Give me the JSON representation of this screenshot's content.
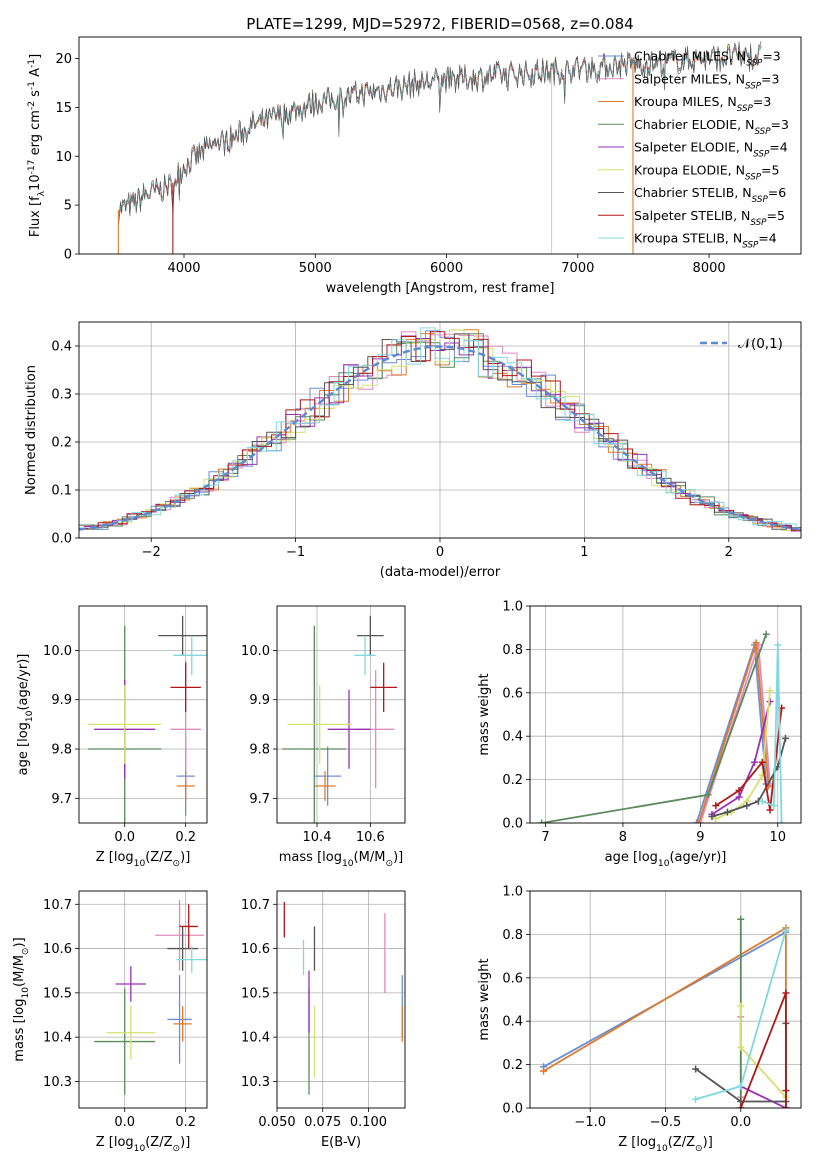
{
  "figure_title": "PLATE=1299, MJD=52972, FIBERID=0568, z=0.084",
  "legend_labels": [
    "Chabrier MILES, N$_{SSP}$=3",
    "Salpeter MILES, N$_{SSP}$=3",
    "Kroupa MILES, N$_{SSP}$=3",
    "Chabrier ELODIE, N$_{SSP}$=3",
    "Salpeter ELODIE, N$_{SSP}$=4",
    "Kroupa ELODIE, N$_{SSP}$=5",
    "Chabrier STELIB, N$_{SSP}$=6",
    "Salpeter STELIB, N$_{SSP}$=5",
    "Kroupa STELIB, N$_{SSP}$=4"
  ],
  "colors": [
    "#6a8fd6",
    "#e08bc0",
    "#e07a2a",
    "#5c8a5c",
    "#9a30b8",
    "#d6e070",
    "#555555",
    "#b01818",
    "#80d8e0"
  ],
  "chart_data": [
    {
      "type": "line",
      "title": "PLATE=1299, MJD=52972, FIBERID=0568, z=0.084",
      "xlabel": "wavelength [Angstrom, rest frame]",
      "ylabel": "Flux [f$_\\lambda$10$^{-17}$ erg cm$^{-2}$ s$^{-1}$ A$^{-1}$]",
      "xlim": [
        3200,
        8700
      ],
      "ylim": [
        0,
        22.2
      ],
      "xticks": [
        4000,
        5000,
        6000,
        7000,
        8000
      ],
      "yticks": [
        0,
        5,
        10,
        15,
        20
      ],
      "legend": "top-right",
      "spectrum_envelope": {
        "x": [
          3500,
          3600,
          3700,
          3800,
          3900,
          4000,
          4100,
          4200,
          4300,
          4400,
          4500,
          4600,
          4700,
          4800,
          4900,
          5000,
          5200,
          5400,
          5600,
          5800,
          6000,
          6200,
          6400,
          6600,
          6800,
          7000,
          7200,
          7400,
          7600,
          7800,
          8000,
          8200,
          8400
        ],
        "y": [
          4.5,
          5.0,
          6.0,
          6.5,
          7.0,
          9.0,
          10.0,
          11.0,
          11.5,
          12.0,
          13.0,
          13.5,
          14.0,
          14.5,
          15.0,
          15.5,
          16.0,
          16.5,
          17.0,
          17.5,
          17.8,
          18.0,
          18.3,
          18.5,
          18.7,
          19.0,
          19.2,
          19.4,
          19.6,
          19.8,
          20.0,
          20.2,
          20.3
        ]
      },
      "noise_amplitude": 1.2,
      "grid": false
    },
    {
      "type": "line",
      "xlabel": "(data-model)/error",
      "ylabel": "Normed distribution",
      "xlim": [
        -2.5,
        2.5
      ],
      "ylim": [
        0,
        0.45
      ],
      "xticks": [
        -2,
        -1,
        0,
        1,
        2
      ],
      "yticks": [
        0.0,
        0.1,
        0.2,
        0.3,
        0.4
      ],
      "reference_label": "$\\mathcal{N}(0,1)$",
      "legend": "top-right",
      "grid": true,
      "bin_width": 0.1
    },
    {
      "type": "scatter",
      "xlabel": "Z [log$_{10}$(Z/Z$_\\odot$)]",
      "ylabel": "age  [log$_{10}$(age/yr)]",
      "xlim": [
        -0.15,
        0.27
      ],
      "ylim": [
        9.65,
        10.09
      ],
      "xticks": [
        0.0,
        0.2
      ],
      "yticks": [
        9.7,
        9.8,
        9.9,
        10.0
      ],
      "grid": true,
      "points": [
        {
          "x": 0.2,
          "y": 9.745,
          "xerr": 0.03,
          "yerr": 0.08
        },
        {
          "x": 0.2,
          "y": 9.84,
          "xerr": 0.05,
          "yerr": 0.14
        },
        {
          "x": 0.2,
          "y": 9.725,
          "xerr": 0.03,
          "yerr": 0.03
        },
        {
          "x": 0.0,
          "y": 9.8,
          "xerr": 0.12,
          "yerr": 0.25
        },
        {
          "x": 0.0,
          "y": 9.84,
          "xerr": 0.1,
          "yerr": 0.1
        },
        {
          "x": 0.0,
          "y": 9.85,
          "xerr": 0.12,
          "yerr": 0.08
        },
        {
          "x": 0.19,
          "y": 10.03,
          "xerr": 0.08,
          "yerr": 0.04
        },
        {
          "x": 0.2,
          "y": 9.925,
          "xerr": 0.05,
          "yerr": 0.05
        },
        {
          "x": 0.22,
          "y": 9.99,
          "xerr": 0.06,
          "yerr": 0.04
        }
      ]
    },
    {
      "type": "scatter",
      "xlabel": "mass [log$_{10}$(M/M$_\\odot$)]",
      "xlim": [
        10.25,
        10.73
      ],
      "ylim": [
        9.65,
        10.09
      ],
      "xticks": [
        10.4,
        10.6
      ],
      "yticks": [
        9.7,
        9.8,
        9.9,
        10.0
      ],
      "grid": true,
      "points": [
        {
          "x": 10.44,
          "y": 9.745,
          "xerr": 0.05,
          "yerr": 0.06
        },
        {
          "x": 10.62,
          "y": 9.84,
          "xerr": 0.07,
          "yerr": 0.12
        },
        {
          "x": 10.43,
          "y": 9.725,
          "xerr": 0.04,
          "yerr": 0.03
        },
        {
          "x": 10.39,
          "y": 9.8,
          "xerr": 0.12,
          "yerr": 0.25
        },
        {
          "x": 10.52,
          "y": 9.84,
          "xerr": 0.08,
          "yerr": 0.08
        },
        {
          "x": 10.41,
          "y": 9.85,
          "xerr": 0.12,
          "yerr": 0.08
        },
        {
          "x": 10.6,
          "y": 10.03,
          "xerr": 0.05,
          "yerr": 0.04
        },
        {
          "x": 10.65,
          "y": 9.925,
          "xerr": 0.05,
          "yerr": 0.05
        },
        {
          "x": 10.58,
          "y": 9.99,
          "xerr": 0.04,
          "yerr": 0.04
        }
      ]
    },
    {
      "type": "line",
      "xlabel": "age  [log$_{10}$(age/yr)]",
      "ylabel": "mass weight",
      "xlim": [
        6.8,
        10.3
      ],
      "ylim": [
        0.0,
        1.0
      ],
      "xticks": [
        7,
        8,
        9,
        10
      ],
      "yticks": [
        0.0,
        0.2,
        0.4,
        0.6,
        0.8,
        1.0
      ],
      "grid": true,
      "series": [
        {
          "x": [
            8.95,
            9.7,
            9.85
          ],
          "y": [
            0.0,
            0.82,
            0.18
          ]
        },
        {
          "x": [
            9.0,
            9.75,
            9.9
          ],
          "y": [
            0.0,
            0.82,
            0.18
          ]
        },
        {
          "x": [
            8.98,
            9.72,
            9.88
          ],
          "y": [
            0.0,
            0.83,
            0.17
          ]
        },
        {
          "x": [
            6.95,
            9.1,
            9.85
          ],
          "y": [
            0.0,
            0.13,
            0.87
          ]
        },
        {
          "x": [
            9.15,
            9.5,
            9.7,
            9.9
          ],
          "y": [
            0.04,
            0.12,
            0.28,
            0.56
          ]
        },
        {
          "x": [
            9.2,
            9.4,
            9.6,
            9.8,
            9.9
          ],
          "y": [
            0.02,
            0.05,
            0.1,
            0.22,
            0.61
          ]
        },
        {
          "x": [
            9.15,
            9.35,
            9.6,
            9.75,
            10.0,
            10.1
          ],
          "y": [
            0.03,
            0.05,
            0.08,
            0.1,
            0.26,
            0.39
          ]
        },
        {
          "x": [
            9.2,
            9.5,
            9.8,
            9.9,
            10.05
          ],
          "y": [
            0.08,
            0.15,
            0.28,
            0.06,
            0.53
          ]
        },
        {
          "x": [
            9.8,
            9.95,
            10.0,
            10.05
          ],
          "y": [
            0.1,
            0.08,
            0.82,
            0.0
          ]
        }
      ]
    },
    {
      "type": "scatter",
      "xlabel": "Z [log$_{10}$(Z/Z$_\\odot$)]",
      "ylabel": "mass [log$_{10}$(M/M$_\\odot$)]",
      "xlim": [
        -0.15,
        0.27
      ],
      "ylim": [
        10.24,
        10.73
      ],
      "xticks": [
        0.0,
        0.2
      ],
      "yticks": [
        10.3,
        10.4,
        10.5,
        10.6,
        10.7
      ],
      "grid": true,
      "points": [
        {
          "x": 0.18,
          "y": 10.44,
          "xerr": 0.04,
          "yerr": 0.1
        },
        {
          "x": 0.18,
          "y": 10.63,
          "xerr": 0.08,
          "yerr": 0.08
        },
        {
          "x": 0.19,
          "y": 10.43,
          "xerr": 0.03,
          "yerr": 0.04
        },
        {
          "x": 0.0,
          "y": 10.39,
          "xerr": 0.1,
          "yerr": 0.12
        },
        {
          "x": 0.02,
          "y": 10.52,
          "xerr": 0.05,
          "yerr": 0.04
        },
        {
          "x": 0.02,
          "y": 10.41,
          "xerr": 0.08,
          "yerr": 0.06
        },
        {
          "x": 0.19,
          "y": 10.6,
          "xerr": 0.05,
          "yerr": 0.05
        },
        {
          "x": 0.21,
          "y": 10.65,
          "xerr": 0.03,
          "yerr": 0.05
        },
        {
          "x": 0.22,
          "y": 10.575,
          "xerr": 0.05,
          "yerr": 0.03
        }
      ]
    },
    {
      "type": "scatter",
      "xlabel": "E(B-V)",
      "xlim": [
        0.05,
        0.12
      ],
      "ylim": [
        10.24,
        10.73
      ],
      "xticks": [
        0.05,
        0.075,
        0.1
      ],
      "yticks": [
        10.3,
        10.4,
        10.5,
        10.6,
        10.7
      ],
      "grid": true,
      "points": [
        {
          "x": 0.1185,
          "y": 10.47,
          "yerr": 0.07
        },
        {
          "x": 0.109,
          "y": 10.59,
          "yerr": 0.09
        },
        {
          "x": 0.1185,
          "y": 10.43,
          "yerr": 0.04
        },
        {
          "x": 0.0675,
          "y": 10.39,
          "yerr": 0.12
        },
        {
          "x": 0.0675,
          "y": 10.48,
          "yerr": 0.07
        },
        {
          "x": 0.0705,
          "y": 10.39,
          "yerr": 0.08
        },
        {
          "x": 0.0705,
          "y": 10.6,
          "yerr": 0.05
        },
        {
          "x": 0.054,
          "y": 10.665,
          "yerr": 0.04
        },
        {
          "x": 0.0645,
          "y": 10.58,
          "yerr": 0.04
        }
      ]
    },
    {
      "type": "line",
      "xlabel": "Z [log$_{10}$(Z/Z$_\\odot$)]",
      "ylabel": "mass weight",
      "xlim": [
        -1.4,
        0.4
      ],
      "ylim": [
        0.0,
        1.0
      ],
      "xticks": [
        -1.0,
        -0.5,
        0.0
      ],
      "yticks": [
        0.0,
        0.2,
        0.4,
        0.6,
        0.8,
        1.0
      ],
      "grid": true,
      "series": [
        {
          "x": [
            -1.31,
            0.3
          ],
          "y": [
            0.19,
            0.81
          ]
        },
        {
          "x": [
            0.0,
            0.0
          ],
          "y": [
            0.05,
            0.42
          ]
        },
        {
          "x": [
            -1.31,
            0.3,
            0.3
          ],
          "y": [
            0.17,
            0.83,
            0.0
          ]
        },
        {
          "x": [
            0.0,
            0.0
          ],
          "y": [
            0.0,
            0.87
          ]
        },
        {
          "x": [
            0.0,
            0.3
          ],
          "y": [
            0.1,
            0.0
          ]
        },
        {
          "x": [
            0.0,
            0.0,
            0.3
          ],
          "y": [
            0.47,
            0.28,
            0.05
          ]
        },
        {
          "x": [
            -0.3,
            0.0,
            0.3,
            0.3
          ],
          "y": [
            0.18,
            0.03,
            0.03,
            0.39
          ]
        },
        {
          "x": [
            0.0,
            0.3,
            0.3,
            0.3
          ],
          "y": [
            0.0,
            0.53,
            0.08,
            0.0
          ]
        },
        {
          "x": [
            -0.3,
            0.0,
            0.3
          ],
          "y": [
            0.04,
            0.1,
            0.82
          ]
        }
      ]
    }
  ]
}
